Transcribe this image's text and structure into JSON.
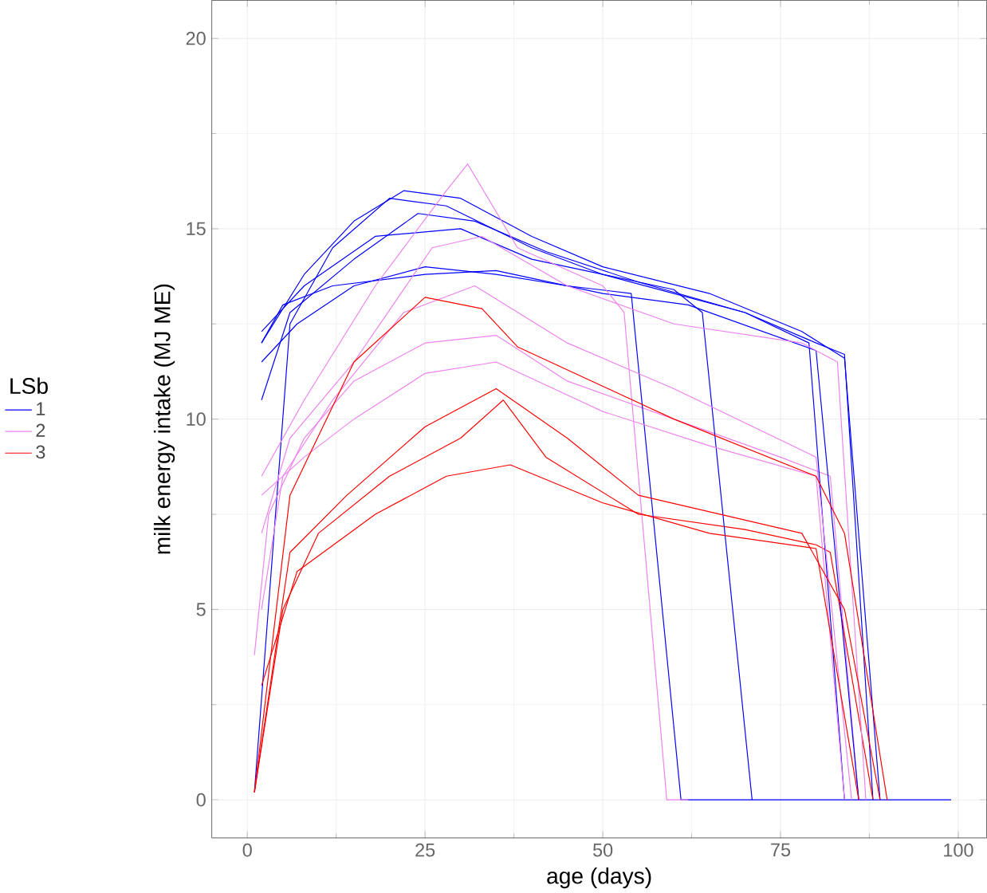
{
  "chart_data": {
    "type": "line",
    "xlabel": "age (days)",
    "ylabel": "milk energy intake (MJ ME)",
    "legend_title": "LSb",
    "legend": "left",
    "xlim": [
      -5,
      104
    ],
    "ylim": [
      -1,
      21
    ],
    "xticks": [
      0,
      25,
      50,
      75,
      100
    ],
    "yticks": [
      0,
      5,
      10,
      15,
      20
    ],
    "grid": true,
    "series": [
      {
        "name": "1",
        "color": "#0000ff",
        "x": [
          1,
          6,
          12,
          20,
          28,
          40,
          50,
          60,
          70,
          80,
          84,
          88
        ],
        "values": [
          0.2,
          12.5,
          14.5,
          15.8,
          15.6,
          14.5,
          13.8,
          13.3,
          12.8,
          12.0,
          11.7,
          0
        ]
      },
      {
        "name": "2",
        "color": "#ee82ee",
        "x": [
          1,
          3,
          8,
          15,
          25,
          35,
          45,
          60,
          75,
          82,
          86
        ],
        "values": [
          3.8,
          7.5,
          9.5,
          11,
          12,
          12.2,
          11,
          10,
          9,
          8.5,
          0
        ]
      },
      {
        "name": "3",
        "color": "#ff0000",
        "x": [
          1,
          5,
          10,
          20,
          30,
          36,
          42,
          55,
          70,
          80,
          82,
          88
        ],
        "values": [
          0.2,
          5,
          7,
          8.5,
          9.5,
          10.5,
          9,
          7.5,
          7.1,
          6.7,
          6.5,
          0
        ]
      },
      {
        "color": "#0000ff",
        "x": [
          2,
          8,
          15,
          22,
          30,
          40,
          50,
          65,
          78,
          84,
          89
        ],
        "values": [
          12,
          13.8,
          15.2,
          16.0,
          15.8,
          14.8,
          14.0,
          13.3,
          12.3,
          11.6,
          0
        ]
      },
      {
        "color": "#0000ff",
        "x": [
          2,
          7,
          15,
          25,
          35,
          45,
          54,
          61,
          99
        ],
        "values": [
          11.5,
          12.5,
          13.5,
          14.0,
          13.8,
          13.5,
          13.3,
          0,
          0
        ]
      },
      {
        "color": "#0000ff",
        "x": [
          2,
          8,
          18,
          30,
          40,
          50,
          60,
          64,
          71
        ],
        "values": [
          12.3,
          13.5,
          14.8,
          15.0,
          14.2,
          13.8,
          13.4,
          12.8,
          0
        ]
      },
      {
        "color": "#0000ff",
        "x": [
          2,
          6,
          15,
          24,
          32,
          42,
          55,
          70,
          79,
          84
        ],
        "values": [
          10.5,
          12.8,
          14.2,
          15.4,
          15.2,
          14.4,
          13.6,
          12.8,
          12.0,
          0
        ]
      },
      {
        "color": "#0000ff",
        "x": [
          2,
          5,
          12,
          25,
          35,
          50,
          62,
          80,
          86
        ],
        "values": [
          12,
          13,
          13.5,
          13.8,
          13.9,
          13.3,
          13.0,
          11.8,
          0
        ]
      },
      {
        "color": "#ee82ee",
        "x": [
          2,
          8,
          18,
          28,
          31,
          38,
          50,
          53,
          59,
          62
        ],
        "values": [
          8.5,
          10.5,
          13.5,
          16,
          16.7,
          14.5,
          13.5,
          12.8,
          0,
          0
        ]
      },
      {
        "color": "#ee82ee",
        "x": [
          2,
          6,
          15,
          26,
          33,
          45,
          60,
          78,
          83,
          87
        ],
        "values": [
          7,
          9.5,
          11.5,
          14.5,
          14.8,
          13.5,
          12.5,
          12,
          11.5,
          0
        ]
      },
      {
        "color": "#ee82ee",
        "x": [
          2,
          8,
          15,
          25,
          35,
          50,
          65,
          80,
          84
        ],
        "values": [
          8,
          9,
          10,
          11.2,
          11.5,
          10.2,
          9.3,
          8.5,
          0
        ]
      },
      {
        "color": "#ee82ee",
        "x": [
          2,
          5,
          12,
          22,
          32,
          45,
          60,
          80,
          85
        ],
        "values": [
          5,
          8.5,
          10.5,
          12.8,
          13.5,
          12,
          10.8,
          9.0,
          0
        ]
      },
      {
        "color": "#ff0000",
        "x": [
          1,
          6,
          14,
          25,
          35,
          45,
          55,
          78,
          84,
          89
        ],
        "values": [
          0.2,
          6.5,
          8,
          9.8,
          10.8,
          9.5,
          8,
          7,
          5,
          0
        ]
      },
      {
        "color": "#ff0000",
        "x": [
          2,
          7,
          18,
          28,
          37,
          50,
          65,
          80,
          86
        ],
        "values": [
          3,
          6,
          7.5,
          8.5,
          8.8,
          7.8,
          7.0,
          6.6,
          0
        ]
      },
      {
        "color": "#ff0000",
        "x": [
          1,
          6,
          15,
          25,
          33,
          38,
          60,
          80,
          84,
          90
        ],
        "values": [
          0.2,
          8,
          11.5,
          13.2,
          12.9,
          11.9,
          10,
          8.5,
          7,
          0
        ]
      }
    ]
  }
}
